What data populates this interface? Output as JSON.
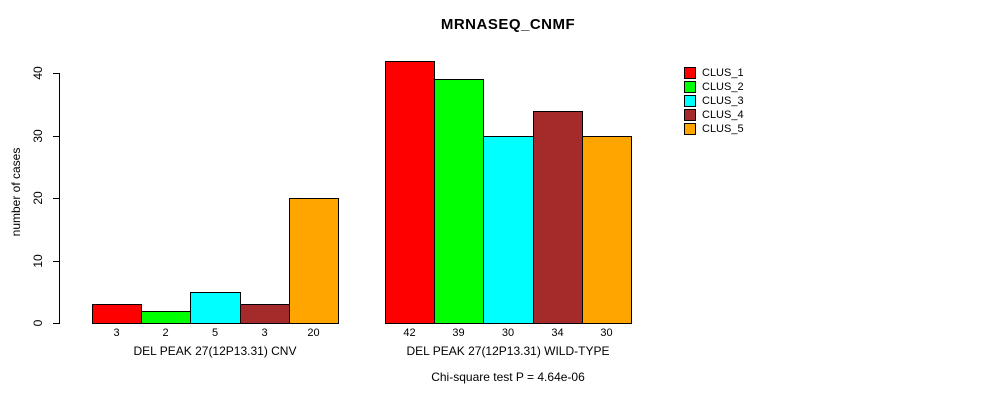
{
  "chart_data": {
    "type": "bar",
    "title": "MRNASEQ_CNMF",
    "ylabel": "number of cases",
    "xlabel": "",
    "note": "Chi-square test P = 4.64e-06",
    "ylim": [
      0,
      40
    ],
    "yticks": [
      0,
      10,
      20,
      30,
      40
    ],
    "grid": false,
    "legend_position": "top-right",
    "categories": [
      "DEL PEAK 27(12P13.31) CNV",
      "DEL PEAK 27(12P13.31) WILD-TYPE"
    ],
    "series": [
      {
        "name": "CLUS_1",
        "color": "#FF0000",
        "values": [
          3,
          42
        ]
      },
      {
        "name": "CLUS_2",
        "color": "#00FF00",
        "values": [
          2,
          39
        ]
      },
      {
        "name": "CLUS_3",
        "color": "#00FFFF",
        "values": [
          5,
          30
        ]
      },
      {
        "name": "CLUS_4",
        "color": "#A52A2A",
        "values": [
          3,
          34
        ]
      },
      {
        "name": "CLUS_5",
        "color": "#FFA500",
        "values": [
          20,
          30
        ]
      }
    ],
    "show_value_labels": true
  }
}
